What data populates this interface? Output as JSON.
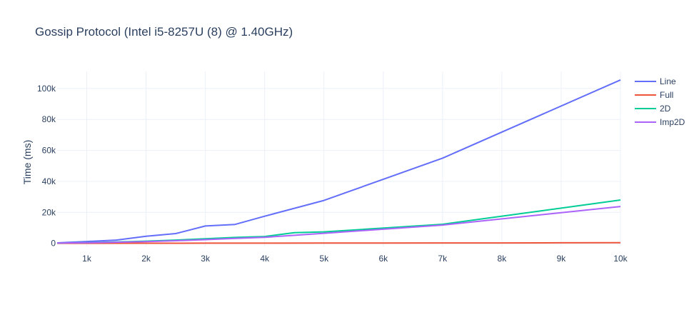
{
  "chart_data": {
    "type": "line",
    "title": "Gossip Protocol (Intel i5-8257U (8) @ 1.40GHz)",
    "xlabel": "",
    "ylabel": "Time (ms)",
    "xlim": [
      500,
      10000
    ],
    "ylim": [
      -2000,
      111000
    ],
    "x_ticks": [
      1000,
      2000,
      3000,
      4000,
      5000,
      6000,
      7000,
      8000,
      9000,
      10000
    ],
    "x_tick_labels": [
      "1k",
      "2k",
      "3k",
      "4k",
      "5k",
      "6k",
      "7k",
      "8k",
      "9k",
      "10k"
    ],
    "y_ticks": [
      0,
      20000,
      40000,
      60000,
      80000,
      100000
    ],
    "y_tick_labels": [
      "0",
      "20k",
      "40k",
      "60k",
      "80k",
      "100k"
    ],
    "grid": true,
    "legend": "top-right",
    "series": [
      {
        "name": "Line",
        "color": "#636efa",
        "x": [
          500,
          1000,
          1500,
          2000,
          2500,
          3000,
          3500,
          4000,
          5000,
          7000,
          10000
        ],
        "y": [
          300,
          1200,
          2100,
          4600,
          6300,
          11200,
          12200,
          17500,
          27700,
          55000,
          105500
        ]
      },
      {
        "name": "Full",
        "color": "#ef553b",
        "x": [
          500,
          1000,
          2000,
          3000,
          4000,
          5000,
          6000,
          7000,
          8000,
          9000,
          10000
        ],
        "y": [
          20,
          40,
          70,
          100,
          130,
          160,
          200,
          240,
          280,
          330,
          380
        ]
      },
      {
        "name": "2D",
        "color": "#00cc96",
        "x": [
          500,
          1000,
          1500,
          2000,
          2500,
          3000,
          3500,
          4000,
          4500,
          5000,
          7000,
          10000
        ],
        "y": [
          200,
          500,
          900,
          1400,
          2100,
          3000,
          3800,
          4400,
          6900,
          7400,
          12300,
          28000
        ]
      },
      {
        "name": "Imp2D",
        "color": "#ab63fa",
        "x": [
          500,
          1000,
          1500,
          2000,
          2500,
          3000,
          3500,
          4000,
          5000,
          7000,
          10000
        ],
        "y": [
          150,
          400,
          700,
          1100,
          1700,
          2400,
          3200,
          3900,
          6500,
          11800,
          23800
        ]
      }
    ]
  }
}
